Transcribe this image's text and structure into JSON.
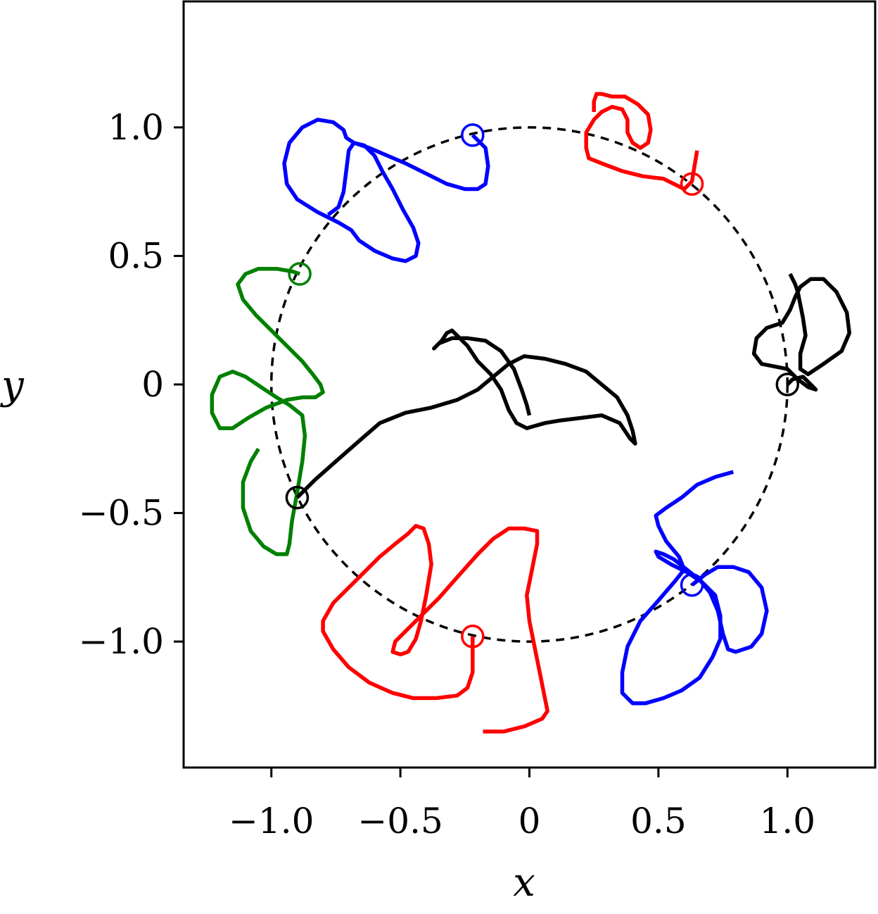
{
  "chart_data": {
    "type": "line",
    "title": "",
    "xlabel": "x",
    "ylabel": "y",
    "xlim": [
      -1.34,
      1.34
    ],
    "ylim": [
      -1.49,
      1.49
    ],
    "xticks": [
      -1.0,
      -0.5,
      0,
      0.5,
      1.0
    ],
    "yticks": [
      -1.0,
      -0.5,
      0,
      0.5,
      1.0
    ],
    "xtick_labels": [
      "−1.0",
      "−0.5",
      "0",
      "0.5",
      "1.0"
    ],
    "ytick_labels": [
      "−1.0",
      "−0.5",
      "0",
      "0.5",
      "1.0"
    ],
    "grid": false,
    "legend": "none",
    "reference_circle": {
      "radius": 1.0,
      "style": "dashed",
      "color": "#000000"
    },
    "series": [
      {
        "color": "#0000ff",
        "start": [
          -0.22,
          0.97
        ],
        "points": [
          [
            -0.22,
            0.97
          ],
          [
            -0.17,
            0.92
          ],
          [
            -0.16,
            0.85
          ],
          [
            -0.17,
            0.78
          ],
          [
            -0.2,
            0.76
          ],
          [
            -0.25,
            0.76
          ],
          [
            -0.32,
            0.78
          ],
          [
            -0.4,
            0.82
          ],
          [
            -0.48,
            0.86
          ],
          [
            -0.55,
            0.89
          ],
          [
            -0.62,
            0.92
          ],
          [
            -0.68,
            0.94
          ],
          [
            -0.71,
            0.96
          ],
          [
            -0.72,
            0.99
          ],
          [
            -0.76,
            1.02
          ],
          [
            -0.82,
            1.03
          ],
          [
            -0.88,
            1.0
          ],
          [
            -0.93,
            0.94
          ],
          [
            -0.95,
            0.86
          ],
          [
            -0.94,
            0.78
          ],
          [
            -0.9,
            0.72
          ],
          [
            -0.82,
            0.67
          ],
          [
            -0.74,
            0.63
          ],
          [
            -0.69,
            0.6
          ],
          [
            -0.66,
            0.56
          ],
          [
            -0.6,
            0.52
          ],
          [
            -0.53,
            0.49
          ],
          [
            -0.48,
            0.48
          ],
          [
            -0.44,
            0.5
          ],
          [
            -0.43,
            0.55
          ],
          [
            -0.45,
            0.61
          ],
          [
            -0.49,
            0.68
          ],
          [
            -0.53,
            0.76
          ],
          [
            -0.57,
            0.83
          ],
          [
            -0.6,
            0.89
          ],
          [
            -0.64,
            0.93
          ],
          [
            -0.68,
            0.94
          ],
          [
            -0.7,
            0.91
          ],
          [
            -0.71,
            0.83
          ],
          [
            -0.72,
            0.75
          ],
          [
            -0.74,
            0.69
          ],
          [
            -0.78,
            0.66
          ]
        ]
      },
      {
        "color": "#ff0000",
        "start": [
          0.63,
          0.78
        ],
        "points": [
          [
            0.65,
            0.91
          ],
          [
            0.64,
            0.85
          ],
          [
            0.63,
            0.79
          ],
          [
            0.6,
            0.76
          ],
          [
            0.52,
            0.8
          ],
          [
            0.44,
            0.81
          ],
          [
            0.36,
            0.83
          ],
          [
            0.28,
            0.86
          ],
          [
            0.23,
            0.88
          ],
          [
            0.22,
            0.92
          ],
          [
            0.22,
            0.98
          ],
          [
            0.25,
            1.03
          ],
          [
            0.28,
            1.06
          ],
          [
            0.32,
            1.08
          ],
          [
            0.36,
            1.07
          ],
          [
            0.38,
            1.03
          ],
          [
            0.38,
            0.98
          ],
          [
            0.4,
            0.94
          ],
          [
            0.43,
            0.92
          ],
          [
            0.46,
            0.94
          ],
          [
            0.47,
            0.99
          ],
          [
            0.46,
            1.05
          ],
          [
            0.42,
            1.09
          ],
          [
            0.37,
            1.12
          ],
          [
            0.32,
            1.12
          ],
          [
            0.28,
            1.13
          ],
          [
            0.26,
            1.13
          ],
          [
            0.25,
            1.1
          ],
          [
            0.25,
            1.06
          ]
        ]
      },
      {
        "color": "#008000",
        "start": [
          -0.89,
          0.43
        ],
        "points": [
          [
            -0.89,
            0.43
          ],
          [
            -0.92,
            0.44
          ],
          [
            -0.98,
            0.45
          ],
          [
            -1.05,
            0.45
          ],
          [
            -1.1,
            0.43
          ],
          [
            -1.13,
            0.39
          ],
          [
            -1.11,
            0.33
          ],
          [
            -1.06,
            0.27
          ],
          [
            -1.0,
            0.21
          ],
          [
            -0.94,
            0.15
          ],
          [
            -0.88,
            0.09
          ],
          [
            -0.84,
            0.04
          ],
          [
            -0.81,
            0.0
          ],
          [
            -0.8,
            -0.03
          ],
          [
            -0.83,
            -0.05
          ],
          [
            -0.88,
            -0.05
          ],
          [
            -0.94,
            -0.06
          ],
          [
            -1.02,
            -0.09
          ],
          [
            -1.09,
            -0.13
          ],
          [
            -1.15,
            -0.17
          ],
          [
            -1.2,
            -0.17
          ],
          [
            -1.23,
            -0.11
          ],
          [
            -1.23,
            -0.04
          ],
          [
            -1.2,
            0.03
          ],
          [
            -1.15,
            0.05
          ],
          [
            -1.1,
            0.03
          ],
          [
            -1.04,
            -0.01
          ],
          [
            -0.98,
            -0.05
          ],
          [
            -0.93,
            -0.08
          ],
          [
            -0.88,
            -0.12
          ],
          [
            -0.87,
            -0.2
          ],
          [
            -0.88,
            -0.3
          ],
          [
            -0.9,
            -0.42
          ],
          [
            -0.92,
            -0.53
          ],
          [
            -0.93,
            -0.62
          ],
          [
            -0.94,
            -0.66
          ],
          [
            -0.98,
            -0.66
          ],
          [
            -1.03,
            -0.63
          ],
          [
            -1.08,
            -0.57
          ],
          [
            -1.11,
            -0.48
          ],
          [
            -1.11,
            -0.38
          ],
          [
            -1.08,
            -0.3
          ],
          [
            -1.05,
            -0.25
          ]
        ]
      },
      {
        "color": "#000000",
        "start": [
          -0.9,
          -0.44
        ],
        "points": [
          [
            -0.9,
            -0.44
          ],
          [
            -0.83,
            -0.37
          ],
          [
            -0.74,
            -0.29
          ],
          [
            -0.66,
            -0.22
          ],
          [
            -0.58,
            -0.15
          ],
          [
            -0.48,
            -0.11
          ],
          [
            -0.38,
            -0.09
          ],
          [
            -0.28,
            -0.06
          ],
          [
            -0.2,
            -0.02
          ],
          [
            -0.14,
            0.03
          ],
          [
            -0.08,
            0.08
          ],
          [
            -0.02,
            0.11
          ],
          [
            0.06,
            0.1
          ],
          [
            0.14,
            0.08
          ],
          [
            0.22,
            0.05
          ],
          [
            0.28,
            0.0
          ],
          [
            0.34,
            -0.05
          ],
          [
            0.38,
            -0.12
          ],
          [
            0.4,
            -0.18
          ],
          [
            0.41,
            -0.23
          ],
          [
            0.39,
            -0.21
          ],
          [
            0.35,
            -0.15
          ],
          [
            0.28,
            -0.12
          ],
          [
            0.2,
            -0.13
          ],
          [
            0.12,
            -0.14
          ],
          [
            0.06,
            -0.15
          ],
          [
            -0.01,
            -0.17
          ],
          [
            -0.05,
            -0.15
          ],
          [
            -0.08,
            -0.1
          ],
          [
            -0.11,
            -0.02
          ],
          [
            -0.15,
            0.04
          ],
          [
            -0.2,
            0.09
          ],
          [
            -0.24,
            0.15
          ],
          [
            -0.28,
            0.19
          ],
          [
            -0.3,
            0.21
          ],
          [
            -0.32,
            0.2
          ],
          [
            -0.34,
            0.17
          ],
          [
            -0.37,
            0.14
          ],
          [
            -0.35,
            0.16
          ],
          [
            -0.3,
            0.18
          ],
          [
            -0.24,
            0.18
          ],
          [
            -0.17,
            0.17
          ],
          [
            -0.11,
            0.13
          ],
          [
            -0.06,
            0.06
          ],
          [
            -0.03,
            -0.02
          ],
          [
            -0.01,
            -0.08
          ],
          [
            0.0,
            -0.12
          ]
        ]
      },
      {
        "color": "#000000",
        "start": [
          1.0,
          0.0
        ],
        "points": [
          [
            1.0,
            0.0
          ],
          [
            1.02,
            0.02
          ],
          [
            1.06,
            0.03
          ],
          [
            1.09,
            0.0
          ],
          [
            1.11,
            -0.02
          ],
          [
            1.08,
            -0.01
          ],
          [
            1.04,
            0.02
          ],
          [
            1.0,
            0.06
          ],
          [
            0.95,
            0.07
          ],
          [
            0.9,
            0.08
          ],
          [
            0.87,
            0.12
          ],
          [
            0.88,
            0.18
          ],
          [
            0.92,
            0.22
          ],
          [
            0.98,
            0.24
          ],
          [
            1.01,
            0.29
          ],
          [
            1.03,
            0.34
          ],
          [
            1.05,
            0.38
          ],
          [
            1.09,
            0.41
          ],
          [
            1.14,
            0.41
          ],
          [
            1.19,
            0.36
          ],
          [
            1.23,
            0.28
          ],
          [
            1.24,
            0.2
          ],
          [
            1.21,
            0.13
          ],
          [
            1.14,
            0.08
          ],
          [
            1.08,
            0.04
          ],
          [
            1.05,
            0.06
          ],
          [
            1.05,
            0.12
          ],
          [
            1.07,
            0.19
          ],
          [
            1.06,
            0.26
          ],
          [
            1.05,
            0.31
          ],
          [
            1.04,
            0.36
          ],
          [
            1.03,
            0.39
          ],
          [
            1.01,
            0.43
          ]
        ]
      },
      {
        "color": "#0000ff",
        "start": [
          0.63,
          -0.78
        ],
        "points": [
          [
            0.63,
            -0.78
          ],
          [
            0.68,
            -0.74
          ],
          [
            0.73,
            -0.71
          ],
          [
            0.79,
            -0.71
          ],
          [
            0.85,
            -0.73
          ],
          [
            0.9,
            -0.79
          ],
          [
            0.92,
            -0.88
          ],
          [
            0.9,
            -0.97
          ],
          [
            0.86,
            -1.02
          ],
          [
            0.8,
            -1.04
          ],
          [
            0.77,
            -1.03
          ],
          [
            0.75,
            -0.97
          ],
          [
            0.73,
            -0.88
          ],
          [
            0.7,
            -0.81
          ],
          [
            0.66,
            -0.76
          ],
          [
            0.61,
            -0.72
          ],
          [
            0.56,
            -0.68
          ],
          [
            0.52,
            -0.66
          ],
          [
            0.49,
            -0.65
          ],
          [
            0.5,
            -0.67
          ],
          [
            0.55,
            -0.7
          ],
          [
            0.61,
            -0.73
          ],
          [
            0.67,
            -0.77
          ],
          [
            0.72,
            -0.82
          ],
          [
            0.74,
            -0.9
          ],
          [
            0.74,
            -0.99
          ],
          [
            0.71,
            -1.06
          ],
          [
            0.66,
            -1.14
          ],
          [
            0.59,
            -1.19
          ],
          [
            0.52,
            -1.22
          ],
          [
            0.45,
            -1.24
          ],
          [
            0.4,
            -1.24
          ],
          [
            0.36,
            -1.2
          ],
          [
            0.36,
            -1.12
          ],
          [
            0.38,
            -1.02
          ],
          [
            0.43,
            -0.92
          ],
          [
            0.5,
            -0.84
          ],
          [
            0.56,
            -0.77
          ],
          [
            0.6,
            -0.72
          ],
          [
            0.58,
            -0.67
          ],
          [
            0.53,
            -0.61
          ],
          [
            0.5,
            -0.55
          ],
          [
            0.49,
            -0.51
          ],
          [
            0.53,
            -0.48
          ],
          [
            0.59,
            -0.44
          ],
          [
            0.65,
            -0.39
          ],
          [
            0.72,
            -0.36
          ],
          [
            0.79,
            -0.34
          ]
        ]
      },
      {
        "color": "#ff0000",
        "start": [
          -0.22,
          -0.98
        ],
        "points": [
          [
            -0.22,
            -0.98
          ],
          [
            -0.22,
            -1.04
          ],
          [
            -0.22,
            -1.12
          ],
          [
            -0.24,
            -1.18
          ],
          [
            -0.28,
            -1.21
          ],
          [
            -0.36,
            -1.22
          ],
          [
            -0.45,
            -1.22
          ],
          [
            -0.53,
            -1.2
          ],
          [
            -0.62,
            -1.16
          ],
          [
            -0.7,
            -1.1
          ],
          [
            -0.76,
            -1.03
          ],
          [
            -0.8,
            -0.96
          ],
          [
            -0.8,
            -0.92
          ],
          [
            -0.76,
            -0.85
          ],
          [
            -0.7,
            -0.79
          ],
          [
            -0.64,
            -0.73
          ],
          [
            -0.58,
            -0.67
          ],
          [
            -0.52,
            -0.62
          ],
          [
            -0.47,
            -0.58
          ],
          [
            -0.44,
            -0.55
          ],
          [
            -0.41,
            -0.56
          ],
          [
            -0.39,
            -0.62
          ],
          [
            -0.38,
            -0.7
          ],
          [
            -0.4,
            -0.82
          ],
          [
            -0.42,
            -0.92
          ],
          [
            -0.44,
            -0.99
          ],
          [
            -0.47,
            -1.04
          ],
          [
            -0.5,
            -1.05
          ],
          [
            -0.53,
            -1.04
          ],
          [
            -0.52,
            -1.0
          ],
          [
            -0.48,
            -0.96
          ],
          [
            -0.42,
            -0.9
          ],
          [
            -0.35,
            -0.83
          ],
          [
            -0.28,
            -0.75
          ],
          [
            -0.2,
            -0.66
          ],
          [
            -0.14,
            -0.6
          ],
          [
            -0.08,
            -0.56
          ],
          [
            -0.02,
            -0.56
          ],
          [
            0.03,
            -0.57
          ],
          [
            0.03,
            -0.62
          ],
          [
            0.01,
            -0.72
          ],
          [
            -0.01,
            -0.82
          ],
          [
            0.0,
            -0.92
          ],
          [
            0.02,
            -1.02
          ],
          [
            0.04,
            -1.12
          ],
          [
            0.06,
            -1.22
          ],
          [
            0.07,
            -1.27
          ],
          [
            0.05,
            -1.3
          ],
          [
            -0.02,
            -1.33
          ],
          [
            -0.1,
            -1.35
          ],
          [
            -0.18,
            -1.35
          ]
        ]
      }
    ]
  }
}
